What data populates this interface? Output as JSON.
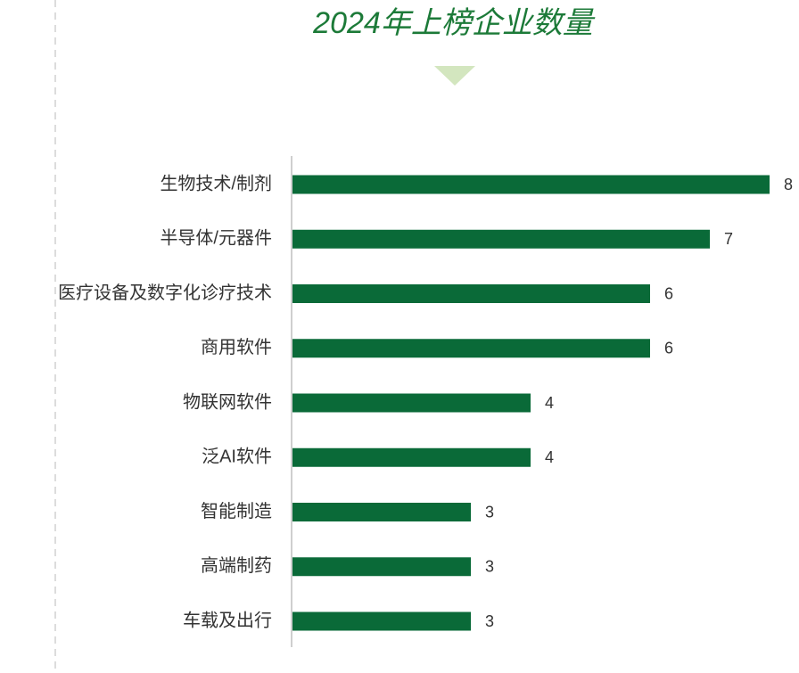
{
  "chart_data": {
    "type": "bar",
    "orientation": "horizontal",
    "title": "2024年上榜企业数量",
    "categories": [
      "生物技术/制剂",
      "半导体/元器件",
      "医疗设备及数字化诊疗技术",
      "商用软件",
      "物联网软件",
      "泛AI软件",
      "智能制造",
      "高端制药",
      "车载及出行"
    ],
    "values": [
      8,
      7,
      6,
      6,
      4,
      4,
      3,
      3,
      3
    ],
    "color": "#0a6a38"
  }
}
